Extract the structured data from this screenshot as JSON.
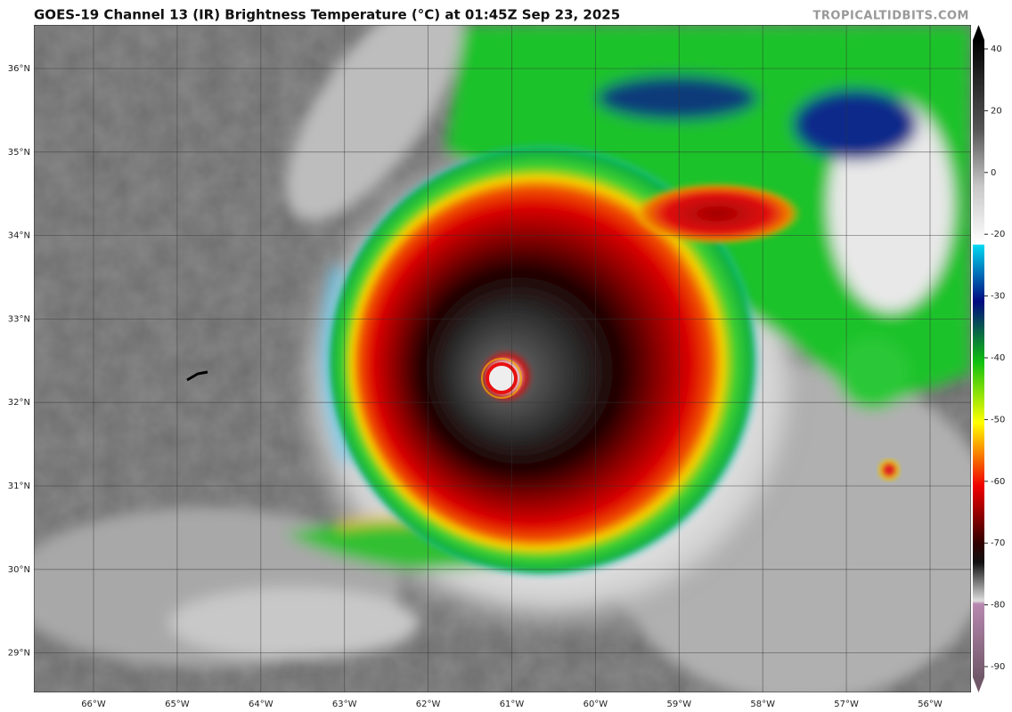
{
  "header": {
    "title": "GOES-19 Channel 13 (IR) Brightness Temperature (°C) at 01:45Z Sep 23, 2025",
    "source": "TROPICALTIDBITS.COM"
  },
  "map": {
    "lat_labels": [
      "36°N",
      "35°N",
      "34°N",
      "33°N",
      "32°N",
      "31°N",
      "30°N",
      "29°N"
    ],
    "lon_labels": [
      "66°W",
      "65°W",
      "64°W",
      "63°W",
      "62°W",
      "61°W",
      "60°W",
      "59°W",
      "58°W",
      "57°W",
      "56°W"
    ]
  },
  "colorbar": {
    "ticks": [
      40,
      20,
      0,
      -20,
      -30,
      -40,
      -50,
      -60,
      -70,
      -80,
      -90
    ]
  }
}
